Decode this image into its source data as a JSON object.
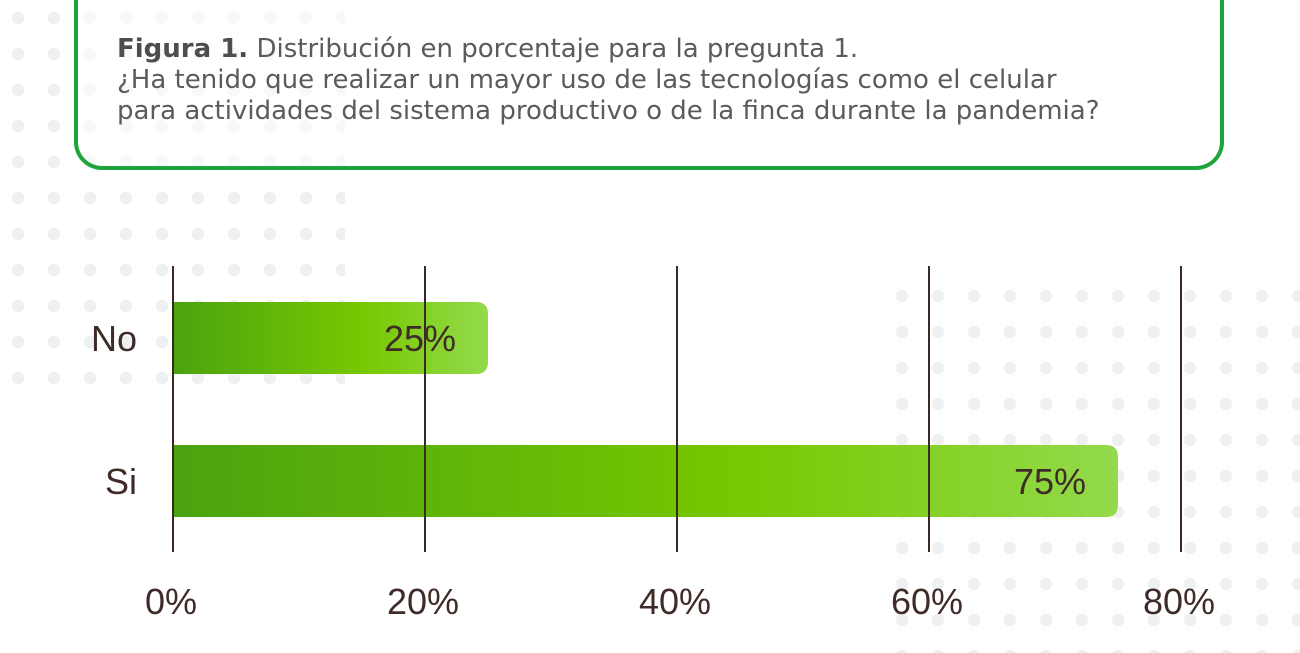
{
  "caption": {
    "label": "Figura 1.",
    "lines": [
      "Distribución en porcentaje para la pregunta 1.",
      "¿Ha tenido que realizar un mayor uso de las tecnologías como el celular",
      "para actividades del sistema productivo o de la finca durante la pandemia?"
    ]
  },
  "colors": {
    "frame": "#1da53a",
    "bar_dark": "#4aa30f",
    "bar_mid": "#77c800",
    "bar_light": "#93da4c",
    "text": "#3f2c28",
    "gridline": "#3a2a26"
  },
  "chart_data": {
    "type": "bar",
    "orientation": "horizontal",
    "categories": [
      "No",
      "Si"
    ],
    "values": [
      25,
      75
    ],
    "value_labels": [
      "25%",
      "75%"
    ],
    "xlim": [
      0,
      80
    ],
    "x_ticks": [
      0,
      20,
      40,
      60,
      80
    ],
    "x_tick_labels": [
      "0%",
      "20%",
      "40%",
      "60%",
      "80%"
    ],
    "grid": true,
    "legend": false
  }
}
